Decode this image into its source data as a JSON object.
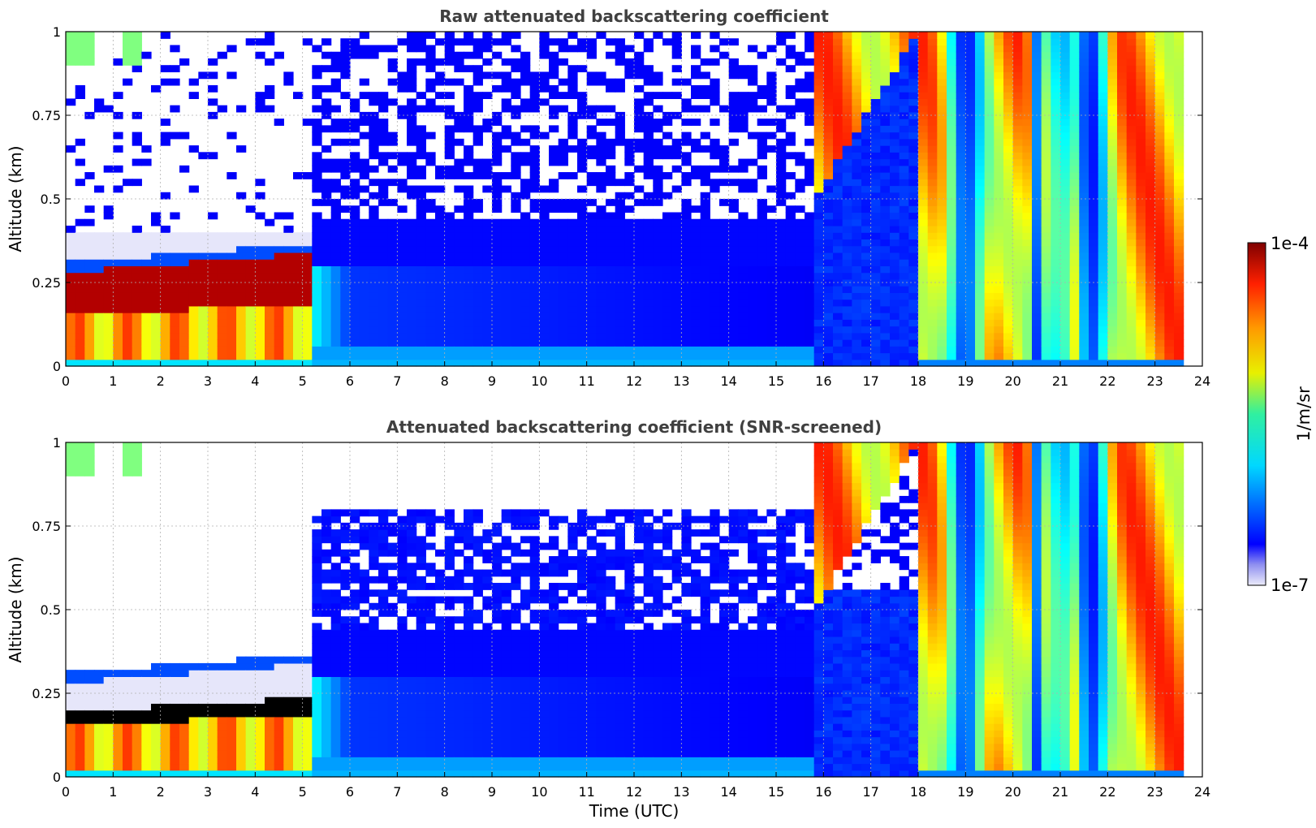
{
  "chart_data": [
    {
      "type": "heatmap",
      "title": "Raw attenuated backscattering coefficient",
      "xlabel": "",
      "ylabel": "Altitude (km)",
      "xlim": [
        0,
        24
      ],
      "ylim": [
        0,
        1
      ],
      "xticks": [
        "0",
        "1",
        "2",
        "3",
        "4",
        "5",
        "6",
        "7",
        "8",
        "9",
        "10",
        "11",
        "12",
        "13",
        "14",
        "15",
        "16",
        "17",
        "18",
        "19",
        "20",
        "21",
        "22",
        "23",
        "24"
      ],
      "yticks": [
        "0",
        "0.25",
        "0.5",
        "0.75",
        "1"
      ],
      "grid": true,
      "screened": false
    },
    {
      "type": "heatmap",
      "title": "Attenuated backscattering coefficient (SNR-screened)",
      "xlabel": "Time (UTC)",
      "ylabel": "Altitude (km)",
      "xlim": [
        0,
        24
      ],
      "ylim": [
        0,
        1
      ],
      "xticks": [
        "0",
        "1",
        "2",
        "3",
        "4",
        "5",
        "6",
        "7",
        "8",
        "9",
        "10",
        "11",
        "12",
        "13",
        "14",
        "15",
        "16",
        "17",
        "18",
        "19",
        "20",
        "21",
        "22",
        "23",
        "24"
      ],
      "yticks": [
        "0",
        "0.25",
        "0.5",
        "0.75",
        "1"
      ],
      "grid": true,
      "screened": true
    }
  ],
  "colorbar": {
    "label": "1/m/sr",
    "min_label": "1e-7",
    "max_label": "1e-4",
    "scale": "log",
    "colormap": "jet"
  }
}
